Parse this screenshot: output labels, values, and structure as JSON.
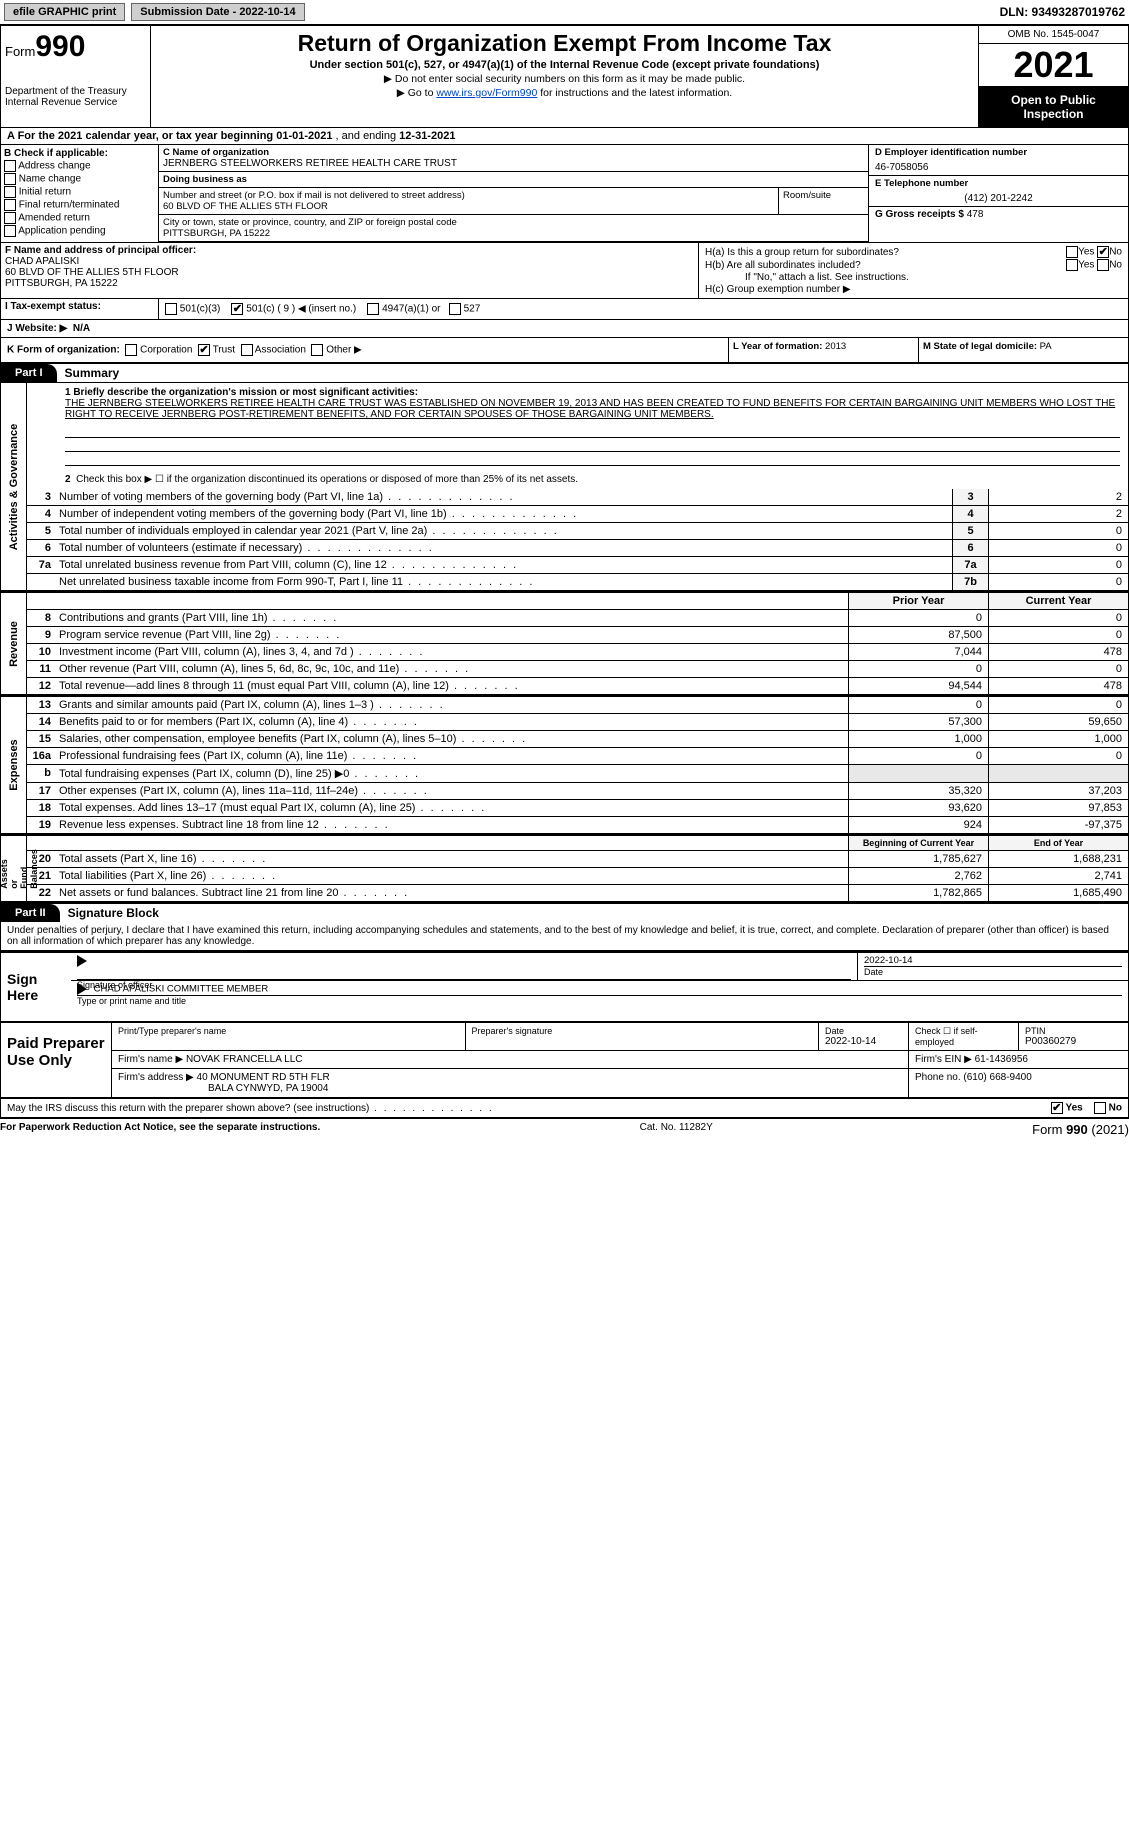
{
  "topbar": {
    "efile": "efile GRAPHIC print",
    "submission_label": "Submission Date - 2022-10-14",
    "dln": "DLN: 93493287019762"
  },
  "header": {
    "form_word": "Form",
    "form_num": "990",
    "dept": "Department of the Treasury\nInternal Revenue Service",
    "title": "Return of Organization Exempt From Income Tax",
    "sub1": "Under section 501(c), 527, or 4947(a)(1) of the Internal Revenue Code (except private foundations)",
    "sub2_prefix": "▶ Do not enter social security numbers on this form as it may be made public.",
    "sub3_prefix": "▶ Go to ",
    "sub綜_link": "www.irs.gov/Form990",
    "sub3_suffix": " for instructions and the latest information.",
    "omb": "OMB No. 1545-0047",
    "year": "2021",
    "otp": "Open to Public Inspection"
  },
  "row_a": {
    "label": "A For the 2021 calendar year, or tax year beginning ",
    "begin": "01-01-2021",
    "mid": "  , and ending ",
    "end": "12-31-2021"
  },
  "col_b": {
    "header": "B Check if applicable:",
    "items": [
      "Address change",
      "Name change",
      "Initial return",
      "Final return/terminated",
      "Amended return",
      "Application pending"
    ]
  },
  "col_c": {
    "name_lbl": "C Name of organization",
    "name": "JERNBERG STEELWORKERS RETIREE HEALTH CARE TRUST",
    "dba_lbl": "Doing business as",
    "dba": "",
    "street_lbl": "Number and street (or P.O. box if mail is not delivered to street address)",
    "street": "60 BLVD OF THE ALLIES 5TH FLOOR",
    "room_lbl": "Room/suite",
    "city_lbl": "City or town, state or province, country, and ZIP or foreign postal code",
    "city": "PITTSBURGH, PA  15222"
  },
  "col_d": {
    "ein_lbl": "D Employer identification number",
    "ein": "46-7058056",
    "phone_lbl": "E Telephone number",
    "phone": "(412) 201-2242",
    "gross_lbl": "G Gross receipts $",
    "gross": "478"
  },
  "col_f": {
    "lbl": "F Name and address of principal officer:",
    "name": "CHAD APALISKI",
    "addr1": "60 BLVD OF THE ALLIES 5TH FLOOR",
    "addr2": "PITTSBURGH, PA  15222"
  },
  "col_h": {
    "ha": "H(a)  Is this a group return for subordinates?",
    "hb": "H(b)  Are all subordinates included?",
    "hb_note": "If \"No,\" attach a list. See instructions.",
    "hc": "H(c)  Group exemption number ▶",
    "yes": "Yes",
    "no": "No"
  },
  "row_i": {
    "lbl": "I  Tax-exempt status:",
    "c3": "501(c)(3)",
    "c": "501(c) ( 9 ) ◀ (insert no.)",
    "a1": "4947(a)(1) or",
    "s527": "527"
  },
  "row_j": {
    "lbl": "J  Website: ▶",
    "val": "N/A"
  },
  "row_k": {
    "lbl": "K Form of organization:",
    "corp": "Corporation",
    "trust": "Trust",
    "assoc": "Association",
    "other": "Other ▶"
  },
  "row_l": {
    "lbl": "L Year of formation:",
    "val": "2013"
  },
  "row_m": {
    "lbl": "M State of legal domicile:",
    "val": "PA"
  },
  "part1": {
    "tab": "Part I",
    "title": "Summary"
  },
  "summary": {
    "q1_label": "1  Briefly describe the organization's mission or most significant activities:",
    "q1_text": "THE JERNBERG STEELWORKERS RETIREE HEALTH CARE TRUST WAS ESTABLISHED ON NOVEMBER 19, 2013 AND HAS BEEN CREATED TO FUND BENEFITS FOR CERTAIN BARGAINING UNIT MEMBERS WHO LOST THE RIGHT TO RECEIVE JERNBERG POST-RETIREMENT BENEFITS, AND FOR CERTAIN SPOUSES OF THOSE BARGAINING UNIT MEMBERS.",
    "q2": "Check this box ▶ ☐  if the organization discontinued its operations or disposed of more than 25% of its net assets.",
    "lines_single": [
      {
        "n": "3",
        "d": "Number of voting members of the governing body (Part VI, line 1a)",
        "box": "3",
        "v": "2"
      },
      {
        "n": "4",
        "d": "Number of independent voting members of the governing body (Part VI, line 1b)",
        "box": "4",
        "v": "2"
      },
      {
        "n": "5",
        "d": "Total number of individuals employed in calendar year 2021 (Part V, line 2a)",
        "box": "5",
        "v": "0"
      },
      {
        "n": "6",
        "d": "Total number of volunteers (estimate if necessary)",
        "box": "6",
        "v": "0"
      },
      {
        "n": "7a",
        "d": "Total unrelated business revenue from Part VIII, column (C), line 12",
        "box": "7a",
        "v": "0"
      },
      {
        "n": "",
        "d": "Net unrelated business taxable income from Form 990-T, Part I, line 11",
        "box": "7b",
        "v": "0"
      }
    ],
    "yrhdr": {
      "prior": "Prior Year",
      "current": "Current Year"
    },
    "revenue": [
      {
        "n": "8",
        "d": "Contributions and grants (Part VIII, line 1h)",
        "p": "0",
        "c": "0"
      },
      {
        "n": "9",
        "d": "Program service revenue (Part VIII, line 2g)",
        "p": "87,500",
        "c": "0"
      },
      {
        "n": "10",
        "d": "Investment income (Part VIII, column (A), lines 3, 4, and 7d )",
        "p": "7,044",
        "c": "478"
      },
      {
        "n": "11",
        "d": "Other revenue (Part VIII, column (A), lines 5, 6d, 8c, 9c, 10c, and 11e)",
        "p": "0",
        "c": "0"
      },
      {
        "n": "12",
        "d": "Total revenue—add lines 8 through 11 (must equal Part VIII, column (A), line 12)",
        "p": "94,544",
        "c": "478"
      }
    ],
    "expenses": [
      {
        "n": "13",
        "d": "Grants and similar amounts paid (Part IX, column (A), lines 1–3 )",
        "p": "0",
        "c": "0"
      },
      {
        "n": "14",
        "d": "Benefits paid to or for members (Part IX, column (A), line 4)",
        "p": "57,300",
        "c": "59,650"
      },
      {
        "n": "15",
        "d": "Salaries, other compensation, employee benefits (Part IX, column (A), lines 5–10)",
        "p": "1,000",
        "c": "1,000"
      },
      {
        "n": "16a",
        "d": "Professional fundraising fees (Part IX, column (A), line 11e)",
        "p": "0",
        "c": "0"
      },
      {
        "n": "b",
        "d": "Total fundraising expenses (Part IX, column (D), line 25) ▶0",
        "p": "",
        "c": "",
        "shade": true
      },
      {
        "n": "17",
        "d": "Other expenses (Part IX, column (A), lines 11a–11d, 11f–24e)",
        "p": "35,320",
        "c": "37,203"
      },
      {
        "n": "18",
        "d": "Total expenses. Add lines 13–17 (must equal Part IX, column (A), line 25)",
        "p": "93,620",
        "c": "97,853"
      },
      {
        "n": "19",
        "d": "Revenue less expenses. Subtract line 18 from line 12",
        "p": "924",
        "c": "-97,375"
      }
    ],
    "nethdr": {
      "begin": "Beginning of Current Year",
      "end": "End of Year"
    },
    "net": [
      {
        "n": "20",
        "d": "Total assets (Part X, line 16)",
        "p": "1,785,627",
        "c": "1,688,231"
      },
      {
        "n": "21",
        "d": "Total liabilities (Part X, line 26)",
        "p": "2,762",
        "c": "2,741"
      },
      {
        "n": "22",
        "d": "Net assets or fund balances. Subtract line 21 from line 20",
        "p": "1,782,865",
        "c": "1,685,490"
      }
    ],
    "vlabels": {
      "gov": "Activities & Governance",
      "rev": "Revenue",
      "exp": "Expenses",
      "net": "Net Assets or\nFund Balances"
    }
  },
  "part2": {
    "tab": "Part II",
    "title": "Signature Block"
  },
  "sig": {
    "decl": "Under penalties of perjury, I declare that I have examined this return, including accompanying schedules and statements, and to the best of my knowledge and belief, it is true, correct, and complete. Declaration of preparer (other than officer) is based on all information of which preparer has any knowledge.",
    "sign_here": "Sign Here",
    "sig_officer_lbl": "Signature of officer",
    "date_lbl": "Date",
    "date": "2022-10-14",
    "name": "CHAD APALISKI  COMMITTEE MEMBER",
    "name_lbl": "Type or print name and title"
  },
  "prep": {
    "title": "Paid Preparer Use Only",
    "h_print": "Print/Type preparer's name",
    "h_sig": "Preparer's signature",
    "h_date": "Date",
    "date": "2022-10-14",
    "h_check": "Check ☐ if self-employed",
    "h_ptin": "PTIN",
    "ptin": "P00360279",
    "firm_name_lbl": "Firm's name    ▶",
    "firm_name": "NOVAK FRANCELLA LLC",
    "firm_ein_lbl": "Firm's EIN ▶",
    "firm_ein": "61-1436956",
    "firm_addr_lbl": "Firm's address ▶",
    "firm_addr1": "40 MONUMENT RD 5TH FLR",
    "firm_addr2": "BALA CYNWYD, PA  19004",
    "phone_lbl": "Phone no.",
    "phone": "(610) 668-9400"
  },
  "footer": {
    "discuss": "May the IRS discuss this return with the preparer shown above? (see instructions)",
    "yes": "Yes",
    "no": "No",
    "pra": "For Paperwork Reduction Act Notice, see the separate instructions.",
    "cat": "Cat. No. 11282Y",
    "form": "Form 990 (2021)"
  }
}
